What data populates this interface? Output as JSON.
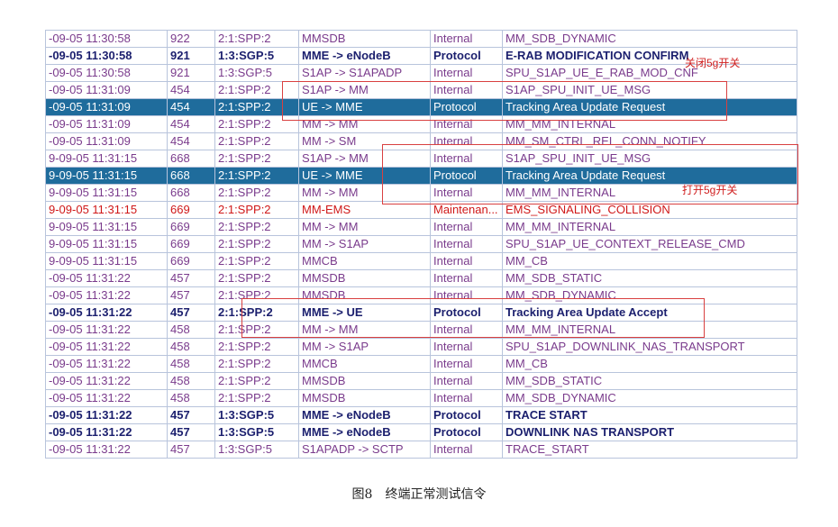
{
  "table": {
    "rows": [
      [
        "-09-05 11:30:58",
        "922",
        "2:1:SPP:2",
        "MMSDB",
        "Internal",
        "MM_SDB_DYNAMIC"
      ],
      [
        "-09-05 11:30:58",
        "921",
        "1:3:SGP:5",
        "MME -> eNodeB",
        "Protocol",
        "E-RAB MODIFICATION CONFIRM"
      ],
      [
        "-09-05 11:30:58",
        "921",
        "1:3:SGP:5",
        "S1AP -> S1APADP",
        "Internal",
        "SPU_S1AP_UE_E_RAB_MOD_CNF"
      ],
      [
        "-09-05 11:31:09",
        "454",
        "2:1:SPP:2",
        "S1AP -> MM",
        "Internal",
        "S1AP_SPU_INIT_UE_MSG"
      ],
      [
        "-09-05 11:31:09",
        "454",
        "2:1:SPP:2",
        "UE -> MME",
        "Protocol",
        "Tracking Area Update Request"
      ],
      [
        "-09-05 11:31:09",
        "454",
        "2:1:SPP:2",
        "MM -> MM",
        "Internal",
        "MM_MM_INTERNAL"
      ],
      [
        "-09-05 11:31:09",
        "454",
        "2:1:SPP:2",
        "MM -> SM",
        "Internal",
        "MM_SM_CTRL_REL_CONN_NOTIFY"
      ],
      [
        "9-09-05 11:31:15",
        "668",
        "2:1:SPP:2",
        "S1AP -> MM",
        "Internal",
        "S1AP_SPU_INIT_UE_MSG"
      ],
      [
        "9-09-05 11:31:15",
        "668",
        "2:1:SPP:2",
        "UE -> MME",
        "Protocol",
        "Tracking Area Update Request"
      ],
      [
        "9-09-05 11:31:15",
        "668",
        "2:1:SPP:2",
        "MM -> MM",
        "Internal",
        "MM_MM_INTERNAL"
      ],
      [
        "9-09-05 11:31:15",
        "669",
        "2:1:SPP:2",
        "MM-EMS",
        "Maintenan...",
        "EMS_SIGNALING_COLLISION"
      ],
      [
        "9-09-05 11:31:15",
        "669",
        "2:1:SPP:2",
        "MM -> MM",
        "Internal",
        "MM_MM_INTERNAL"
      ],
      [
        "9-09-05 11:31:15",
        "669",
        "2:1:SPP:2",
        "MM -> S1AP",
        "Internal",
        "SPU_S1AP_UE_CONTEXT_RELEASE_CMD"
      ],
      [
        "9-09-05 11:31:15",
        "669",
        "2:1:SPP:2",
        "MMCB",
        "Internal",
        "MM_CB"
      ],
      [
        "-09-05 11:31:22",
        "457",
        "2:1:SPP:2",
        "MMSDB",
        "Internal",
        "MM_SDB_STATIC"
      ],
      [
        "-09-05 11:31:22",
        "457",
        "2:1:SPP:2",
        "MMSDB",
        "Internal",
        "MM_SDB_DYNAMIC"
      ],
      [
        "-09-05 11:31:22",
        "457",
        "2:1:SPP:2",
        "MME -> UE",
        "Protocol",
        "Tracking Area Update Accept"
      ],
      [
        "-09-05 11:31:22",
        "458",
        "2:1:SPP:2",
        "MM -> MM",
        "Internal",
        "MM_MM_INTERNAL"
      ],
      [
        "-09-05 11:31:22",
        "458",
        "2:1:SPP:2",
        "MM -> S1AP",
        "Internal",
        "SPU_S1AP_DOWNLINK_NAS_TRANSPORT"
      ],
      [
        "-09-05 11:31:22",
        "458",
        "2:1:SPP:2",
        "MMCB",
        "Internal",
        "MM_CB"
      ],
      [
        "-09-05 11:31:22",
        "458",
        "2:1:SPP:2",
        "MMSDB",
        "Internal",
        "MM_SDB_STATIC"
      ],
      [
        "-09-05 11:31:22",
        "458",
        "2:1:SPP:2",
        "MMSDB",
        "Internal",
        "MM_SDB_DYNAMIC"
      ],
      [
        "-09-05 11:31:22",
        "457",
        "1:3:SGP:5",
        "MME -> eNodeB",
        "Protocol",
        "TRACE START"
      ],
      [
        "-09-05 11:31:22",
        "457",
        "1:3:SGP:5",
        "MME -> eNodeB",
        "Protocol",
        "DOWNLINK NAS TRANSPORT"
      ],
      [
        "-09-05 11:31:22",
        "457",
        "1:3:SGP:5",
        "S1APADP -> SCTP",
        "Internal",
        "TRACE_START"
      ]
    ]
  },
  "annotations": [
    "关闭5g开关",
    "打开5g开关"
  ],
  "caption": "图8　终端正常测试信令"
}
